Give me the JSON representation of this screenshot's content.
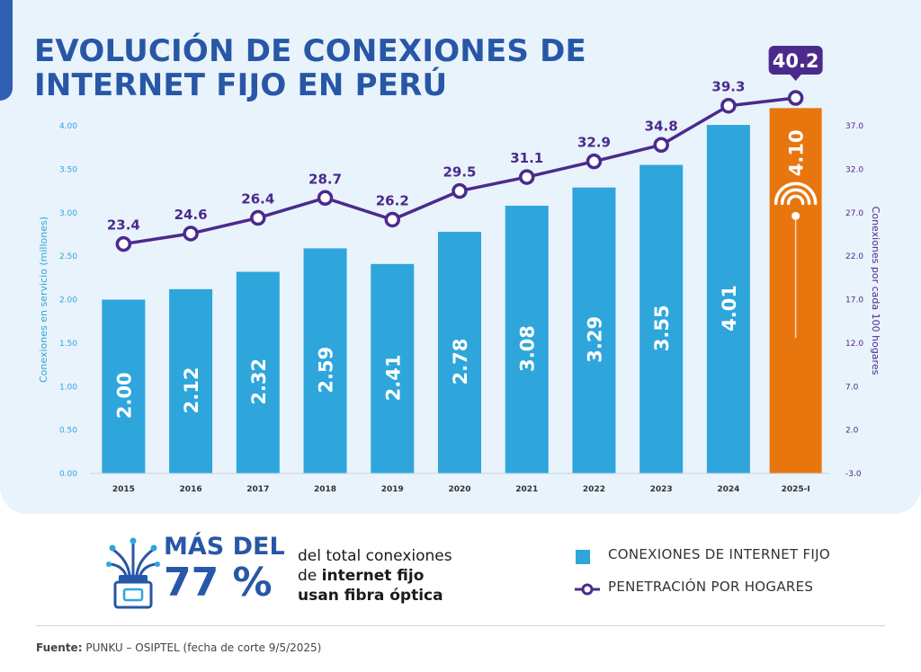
{
  "title": {
    "line1": "EVOLUCIÓN DE CONEXIONES DE",
    "line2": "INTERNET FIJO EN PERÚ"
  },
  "chart_data": {
    "type": "bar",
    "categories": [
      "2015",
      "2016",
      "2017",
      "2018",
      "2019",
      "2020",
      "2021",
      "2022",
      "2023",
      "2024",
      "2025-I"
    ],
    "series": [
      {
        "name": "CONEXIONES DE INTERNET FIJO",
        "type": "bar",
        "axis": "left",
        "values": [
          2.0,
          2.12,
          2.32,
          2.59,
          2.41,
          2.78,
          3.08,
          3.29,
          3.55,
          4.01,
          4.1
        ],
        "labels": [
          "2.00",
          "2.12",
          "2.32",
          "2.59",
          "2.41",
          "2.78",
          "3.08",
          "3.29",
          "3.55",
          "4.01",
          "4.10"
        ],
        "color": "#2ea6dc",
        "highlight_color": "#e8760f"
      },
      {
        "name": "PENETRACIÓN POR HOGARES",
        "type": "line",
        "axis": "right",
        "values": [
          23.4,
          24.6,
          26.4,
          28.7,
          26.2,
          29.5,
          31.1,
          32.9,
          34.8,
          39.3,
          40.2
        ],
        "labels": [
          "23.4",
          "24.6",
          "26.4",
          "28.7",
          "26.2",
          "29.5",
          "31.1",
          "32.9",
          "34.8",
          "39.3",
          "40.2"
        ],
        "color": "#4b2a8c"
      }
    ],
    "y_left": {
      "label": "Conexiones en servicio (millones)",
      "ticks": [
        "0.00",
        "0.50",
        "1.00",
        "1.50",
        "2.00",
        "2.50",
        "3.00",
        "3.50",
        "4.00"
      ],
      "ylim": [
        0,
        4.0
      ]
    },
    "y_right": {
      "label": "Conexiones por cada 100 hogares",
      "ticks": [
        "-3.0",
        "2.0",
        "7.0",
        "12.0",
        "17.0",
        "22.0",
        "27.0",
        "32.0",
        "37.0"
      ],
      "ylim": [
        -3.0,
        37.0
      ]
    },
    "grid": false,
    "legend": "bottom-right"
  },
  "fiber": {
    "headline_1": "MÁS DEL",
    "headline_2": "77 %",
    "text_1": "del total conexiones",
    "text_2_pre": "de ",
    "text_2_bold": "internet fijo",
    "text_3": "usan fibra óptica",
    "icon": "fiber-optic-cable-icon"
  },
  "legend": {
    "bar_label": "CONEXIONES DE INTERNET FIJO",
    "line_label": "PENETRACIÓN POR HOGARES"
  },
  "source": {
    "label": "Fuente:",
    "text": "PUNKU – OSIPTEL (fecha de corte 9/5/2025)"
  },
  "colors": {
    "title": "#2757a6",
    "bar": "#2ea6dc",
    "bar_highlight": "#e8760f",
    "line": "#4b2a8c",
    "panel": "#e9f3fb",
    "axis_text_left": "#2ea6dc",
    "axis_text_right": "#4b2a8c"
  }
}
